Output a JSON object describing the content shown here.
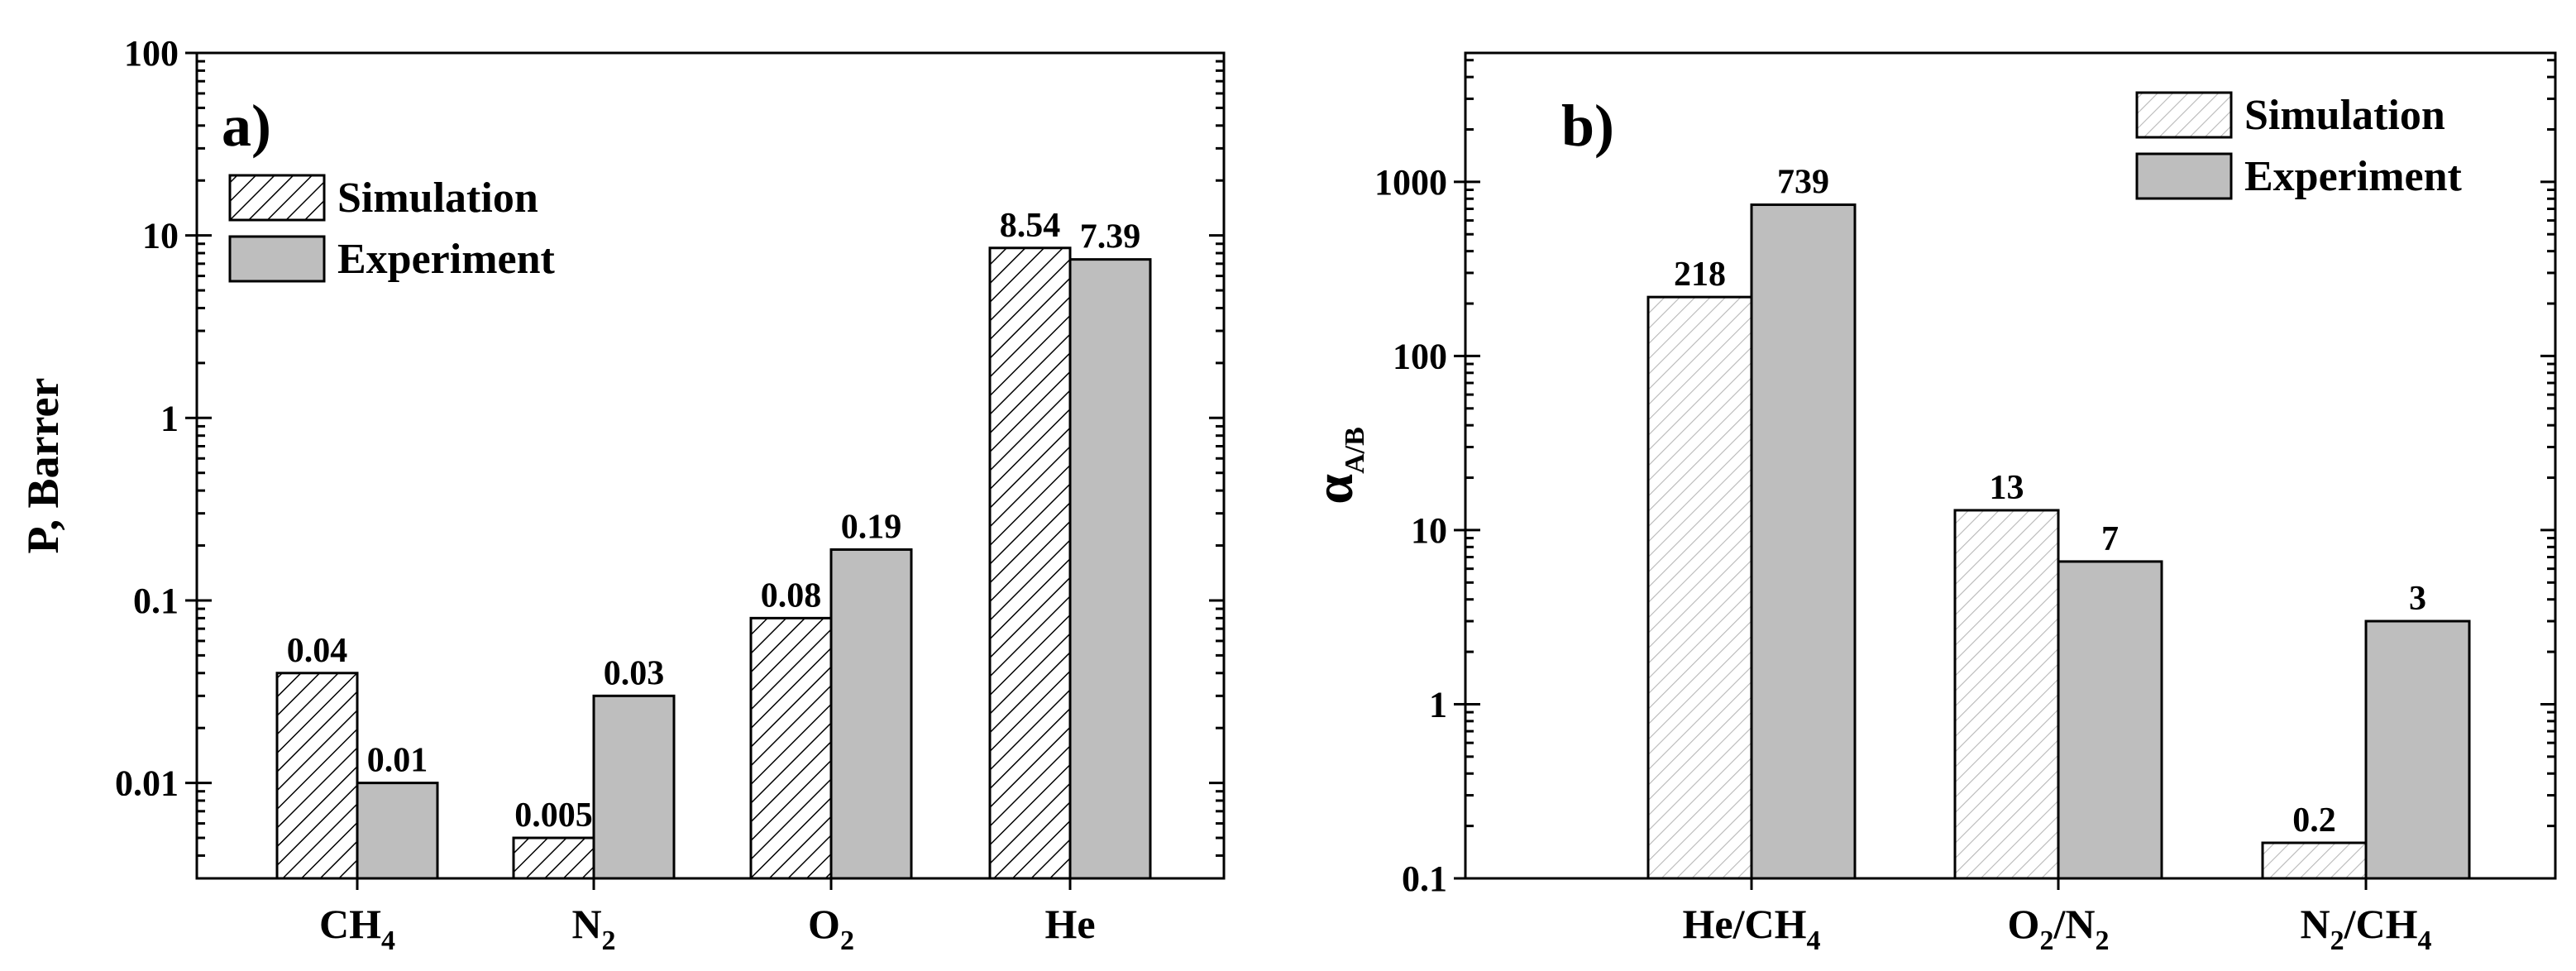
{
  "chart_data": [
    {
      "type": "bar",
      "panel_label": "a)",
      "ylabel": "P, Barrer",
      "yscale": "log",
      "ylim": [
        0.003,
        100
      ],
      "ytick_values": [
        0.01,
        0.1,
        1,
        10,
        100
      ],
      "ytick_labels": [
        "0.01",
        "0.1",
        "1",
        "10",
        "100"
      ],
      "categories": [
        {
          "main": "CH",
          "sub": "4",
          "tail": ""
        },
        {
          "main": "N",
          "sub": "2",
          "tail": ""
        },
        {
          "main": "O",
          "sub": "2",
          "tail": ""
        },
        {
          "main": "He",
          "sub": "",
          "tail": ""
        }
      ],
      "series": [
        {
          "name": "Simulation",
          "values": [
            0.04,
            0.005,
            0.08,
            8.54
          ],
          "labels": [
            "0.04",
            "0.005",
            "0.08",
            "8.54"
          ],
          "style": "hatched"
        },
        {
          "name": "Experiment",
          "values": [
            0.01,
            0.03,
            0.19,
            7.39
          ],
          "labels": [
            "0.01",
            "0.03",
            "0.19",
            "7.39"
          ],
          "style": "solid"
        }
      ],
      "legend": "top-left",
      "colors": {
        "experiment_fill": "#bebebe",
        "hatch": "#000000"
      }
    },
    {
      "type": "bar",
      "panel_label": "b)",
      "ylabel_main": "α",
      "ylabel_sub": "A/B",
      "yscale": "log",
      "ylim": [
        0.1,
        5500
      ],
      "ytick_values": [
        0.1,
        1,
        10,
        100,
        1000
      ],
      "ytick_labels": [
        "0.1",
        "1",
        "10",
        "100",
        "1000"
      ],
      "categories": [
        {
          "main": "He/CH",
          "sub": "4",
          "tail": ""
        },
        {
          "main": "O",
          "sub": "2",
          "tail": "/N"
        },
        {
          "main": "N",
          "sub": "2",
          "tail": "/CH"
        }
      ],
      "category_tail_subs": [
        "",
        "2",
        "4"
      ],
      "series": [
        {
          "name": "Simulation",
          "values": [
            218,
            13,
            0.16
          ],
          "labels": [
            "218",
            "13",
            "0.2"
          ],
          "style": "hatched"
        },
        {
          "name": "Experiment",
          "values": [
            739,
            6.6,
            3
          ],
          "labels": [
            "739",
            "7",
            "3"
          ],
          "style": "solid"
        }
      ],
      "legend": "top-right",
      "colors": {
        "experiment_fill": "#bebebe",
        "hatch": "#bdbdbd"
      }
    }
  ]
}
